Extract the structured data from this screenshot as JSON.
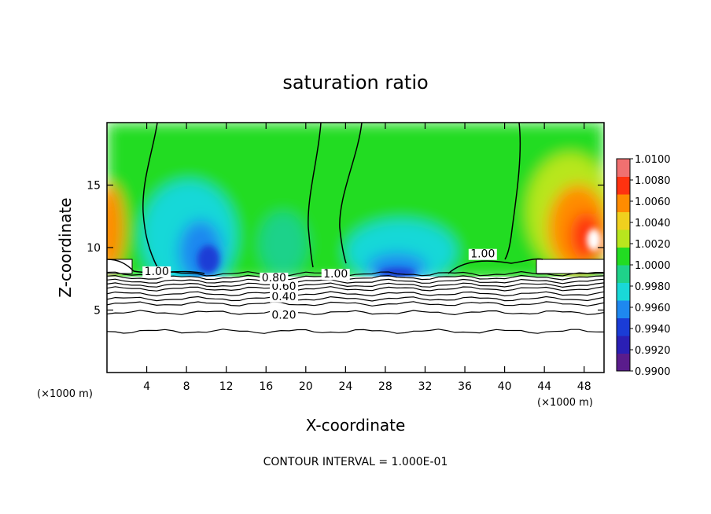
{
  "chart_data": {
    "type": "heatmap",
    "title": "saturation ratio",
    "xlabel": "X-coordinate",
    "ylabel": "Z-coordinate",
    "x_unit": "(×1000 m)",
    "x_unit_right": "(×1000 m)",
    "xlim": [
      0,
      50
    ],
    "ylim": [
      0,
      20
    ],
    "x_ticks": [
      "4",
      "8",
      "12",
      "16",
      "20",
      "24",
      "28",
      "32",
      "36",
      "40",
      "44",
      "48"
    ],
    "y_ticks": [
      "5",
      "10",
      "15"
    ],
    "colorbar": {
      "min": 0.99,
      "max": 1.01,
      "tick_labels": [
        "1.0100",
        "1.0080",
        "1.0060",
        "1.0040",
        "1.0020",
        "1.0000",
        "0.9980",
        "0.9960",
        "0.9940",
        "0.9920",
        "0.9900"
      ],
      "colors": [
        "#5a1c8c",
        "#2a1fb5",
        "#1a3cd6",
        "#1e88f0",
        "#19d8d8",
        "#1fd28a",
        "#22dc22",
        "#b8e61e",
        "#f0d01e",
        "#ff8c00",
        "#ff3210",
        "#f07070"
      ]
    },
    "contour_labels": [
      {
        "text": "0.20",
        "x": 17.8,
        "y": 4.3
      },
      {
        "text": "0.40",
        "x": 17.8,
        "y": 5.8
      },
      {
        "text": "0.60",
        "x": 17.8,
        "y": 6.6
      },
      {
        "text": "0.80",
        "x": 16.8,
        "y": 7.3
      },
      {
        "text": "1.00",
        "x": 5.0,
        "y": 7.8
      },
      {
        "text": "1.00",
        "x": 23.0,
        "y": 7.6
      },
      {
        "text": "1.00",
        "x": 37.8,
        "y": 9.2
      }
    ],
    "footer": "CONTOUR INTERVAL = 1.000E-01"
  }
}
